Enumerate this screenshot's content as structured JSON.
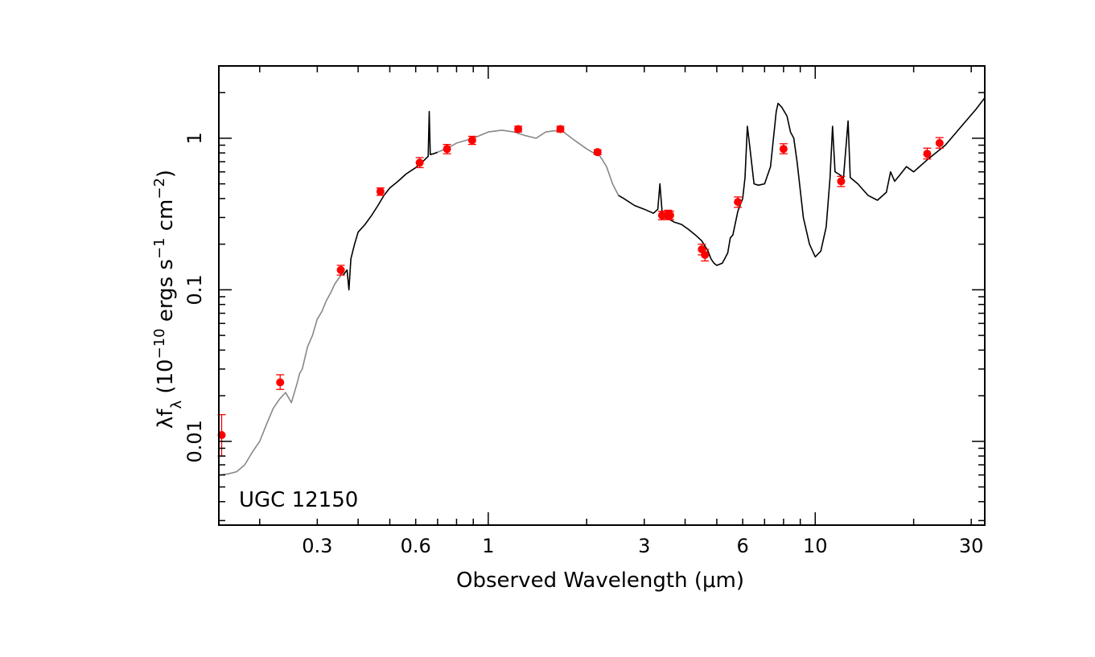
{
  "chart_data": {
    "type": "line",
    "xlabel": "Observed Wavelength (μm)",
    "ylabel_parts": {
      "pre": "λf",
      "sub": "λ",
      "mid1": " (10",
      "exp1": "−10",
      "mid2": " ergs s",
      "exp2": "−1",
      "mid3": " cm",
      "exp3": "−2",
      "post": ")"
    },
    "x_scale": "log",
    "y_scale": "log",
    "xlim": [
      0.15,
      33
    ],
    "ylim": [
      0.0028,
      3.0
    ],
    "x_ticks": [
      {
        "value": 0.3,
        "label": "0.3"
      },
      {
        "value": 0.6,
        "label": "0.6"
      },
      {
        "value": 1,
        "label": "1"
      },
      {
        "value": 3,
        "label": "3"
      },
      {
        "value": 6,
        "label": "6"
      },
      {
        "value": 10,
        "label": "10"
      },
      {
        "value": 30,
        "label": "30"
      }
    ],
    "y_ticks": [
      {
        "value": 0.01,
        "label": "0.01"
      },
      {
        "value": 0.1,
        "label": "0.1"
      },
      {
        "value": 1,
        "label": "1"
      }
    ],
    "annotation": "UGC 12150",
    "series": [
      {
        "style": "model-gray",
        "color": "#888888",
        "points": [
          [
            0.152,
            0.006
          ],
          [
            0.16,
            0.0061
          ],
          [
            0.17,
            0.0063
          ],
          [
            0.18,
            0.007
          ],
          [
            0.19,
            0.0085
          ],
          [
            0.2,
            0.01
          ],
          [
            0.21,
            0.013
          ],
          [
            0.22,
            0.0165
          ],
          [
            0.23,
            0.019
          ],
          [
            0.24,
            0.021
          ],
          [
            0.25,
            0.018
          ],
          [
            0.26,
            0.024
          ],
          [
            0.265,
            0.028
          ],
          [
            0.27,
            0.03
          ],
          [
            0.28,
            0.042
          ],
          [
            0.29,
            0.05
          ],
          [
            0.3,
            0.064
          ],
          [
            0.31,
            0.072
          ],
          [
            0.32,
            0.085
          ],
          [
            0.33,
            0.096
          ],
          [
            0.34,
            0.11
          ],
          [
            0.35,
            0.12
          ],
          [
            0.36,
            0.13
          ]
        ]
      },
      {
        "style": "spectrum-black",
        "color": "#000000",
        "points": [
          [
            0.36,
            0.125
          ],
          [
            0.37,
            0.135
          ],
          [
            0.375,
            0.1
          ],
          [
            0.38,
            0.16
          ],
          [
            0.39,
            0.2
          ],
          [
            0.4,
            0.24
          ],
          [
            0.42,
            0.27
          ],
          [
            0.44,
            0.31
          ],
          [
            0.46,
            0.36
          ],
          [
            0.48,
            0.42
          ],
          [
            0.5,
            0.47
          ],
          [
            0.53,
            0.52
          ],
          [
            0.56,
            0.58
          ],
          [
            0.6,
            0.64
          ],
          [
            0.63,
            0.7
          ],
          [
            0.655,
            0.76
          ],
          [
            0.66,
            1.5
          ],
          [
            0.665,
            0.78
          ],
          [
            0.68,
            0.79
          ],
          [
            0.7,
            0.81
          ]
        ]
      },
      {
        "style": "model-gray",
        "color": "#888888",
        "points": [
          [
            0.7,
            0.81
          ],
          [
            0.75,
            0.86
          ],
          [
            0.8,
            0.93
          ],
          [
            0.9,
            1.0
          ],
          [
            1.0,
            1.1
          ],
          [
            1.1,
            1.13
          ],
          [
            1.2,
            1.1
          ],
          [
            1.3,
            1.04
          ],
          [
            1.4,
            1.0
          ],
          [
            1.5,
            1.1
          ],
          [
            1.6,
            1.12
          ],
          [
            1.7,
            1.1
          ],
          [
            1.8,
            1.0
          ],
          [
            1.9,
            0.92
          ],
          [
            2.0,
            0.85
          ],
          [
            2.1,
            0.8
          ],
          [
            2.2,
            0.76
          ],
          [
            2.3,
            0.65
          ],
          [
            2.4,
            0.5
          ],
          [
            2.5,
            0.42
          ]
        ]
      },
      {
        "style": "spectrum-black",
        "color": "#000000",
        "points": [
          [
            2.5,
            0.42
          ],
          [
            2.6,
            0.4
          ],
          [
            2.8,
            0.36
          ],
          [
            3.0,
            0.34
          ],
          [
            3.2,
            0.32
          ],
          [
            3.3,
            0.34
          ],
          [
            3.35,
            0.5
          ],
          [
            3.4,
            0.33
          ],
          [
            3.5,
            0.3
          ],
          [
            3.7,
            0.28
          ],
          [
            3.9,
            0.27
          ],
          [
            4.1,
            0.25
          ],
          [
            4.3,
            0.23
          ],
          [
            4.5,
            0.21
          ],
          [
            4.7,
            0.18
          ],
          [
            4.8,
            0.16
          ],
          [
            4.9,
            0.15
          ],
          [
            5.0,
            0.145
          ],
          [
            5.2,
            0.15
          ],
          [
            5.4,
            0.175
          ],
          [
            5.5,
            0.22
          ],
          [
            5.6,
            0.23
          ],
          [
            5.8,
            0.33
          ],
          [
            6.0,
            0.4
          ],
          [
            6.1,
            0.55
          ],
          [
            6.2,
            1.2
          ],
          [
            6.3,
            0.9
          ],
          [
            6.5,
            0.5
          ],
          [
            6.7,
            0.49
          ],
          [
            7.0,
            0.5
          ],
          [
            7.3,
            0.65
          ],
          [
            7.6,
            1.5
          ],
          [
            7.7,
            1.7
          ],
          [
            7.9,
            1.6
          ],
          [
            8.2,
            1.4
          ],
          [
            8.4,
            1.1
          ],
          [
            8.6,
            1.0
          ],
          [
            8.8,
            0.7
          ],
          [
            9.2,
            0.3
          ],
          [
            9.6,
            0.2
          ],
          [
            10.0,
            0.165
          ],
          [
            10.4,
            0.18
          ],
          [
            10.8,
            0.26
          ],
          [
            11.1,
            0.55
          ],
          [
            11.3,
            1.2
          ],
          [
            11.5,
            0.6
          ],
          [
            11.8,
            0.58
          ],
          [
            12.2,
            0.55
          ],
          [
            12.6,
            1.3
          ],
          [
            12.8,
            0.55
          ],
          [
            13.5,
            0.5
          ],
          [
            14.5,
            0.42
          ],
          [
            15.5,
            0.39
          ],
          [
            16.5,
            0.44
          ],
          [
            17.0,
            0.6
          ],
          [
            17.5,
            0.52
          ],
          [
            18.0,
            0.56
          ],
          [
            19.0,
            0.65
          ],
          [
            20.0,
            0.6
          ],
          [
            22.0,
            0.72
          ],
          [
            25.0,
            0.9
          ],
          [
            28.0,
            1.2
          ],
          [
            31.0,
            1.55
          ],
          [
            33.0,
            1.85
          ]
        ]
      }
    ],
    "photometry": {
      "color": "#ff0000",
      "points": [
        {
          "x": 0.153,
          "y": 0.011,
          "ylo": 0.008,
          "yhi": 0.015
        },
        {
          "x": 0.231,
          "y": 0.0245,
          "ylo": 0.022,
          "yhi": 0.0275
        },
        {
          "x": 0.354,
          "y": 0.135,
          "ylo": 0.125,
          "yhi": 0.145
        },
        {
          "x": 0.468,
          "y": 0.445,
          "ylo": 0.42,
          "yhi": 0.47
        },
        {
          "x": 0.617,
          "y": 0.69,
          "ylo": 0.64,
          "yhi": 0.745
        },
        {
          "x": 0.748,
          "y": 0.85,
          "ylo": 0.79,
          "yhi": 0.91
        },
        {
          "x": 0.893,
          "y": 0.97,
          "ylo": 0.91,
          "yhi": 1.03
        },
        {
          "x": 1.235,
          "y": 1.15,
          "ylo": 1.1,
          "yhi": 1.2
        },
        {
          "x": 1.662,
          "y": 1.15,
          "ylo": 1.1,
          "yhi": 1.2
        },
        {
          "x": 2.159,
          "y": 0.81,
          "ylo": 0.78,
          "yhi": 0.84
        },
        {
          "x": 3.4,
          "y": 0.31,
          "ylo": 0.29,
          "yhi": 0.33
        },
        {
          "x": 3.55,
          "y": 0.315,
          "ylo": 0.295,
          "yhi": 0.335
        },
        {
          "x": 3.6,
          "y": 0.31,
          "ylo": 0.29,
          "yhi": 0.33
        },
        {
          "x": 4.5,
          "y": 0.185,
          "ylo": 0.17,
          "yhi": 0.2
        },
        {
          "x": 4.6,
          "y": 0.17,
          "ylo": 0.155,
          "yhi": 0.185
        },
        {
          "x": 5.8,
          "y": 0.38,
          "ylo": 0.35,
          "yhi": 0.41
        },
        {
          "x": 8.0,
          "y": 0.85,
          "ylo": 0.79,
          "yhi": 0.92
        },
        {
          "x": 12.0,
          "y": 0.52,
          "ylo": 0.48,
          "yhi": 0.56
        },
        {
          "x": 22.0,
          "y": 0.79,
          "ylo": 0.73,
          "yhi": 0.86
        },
        {
          "x": 24.0,
          "y": 0.93,
          "ylo": 0.86,
          "yhi": 1.01
        }
      ]
    }
  }
}
